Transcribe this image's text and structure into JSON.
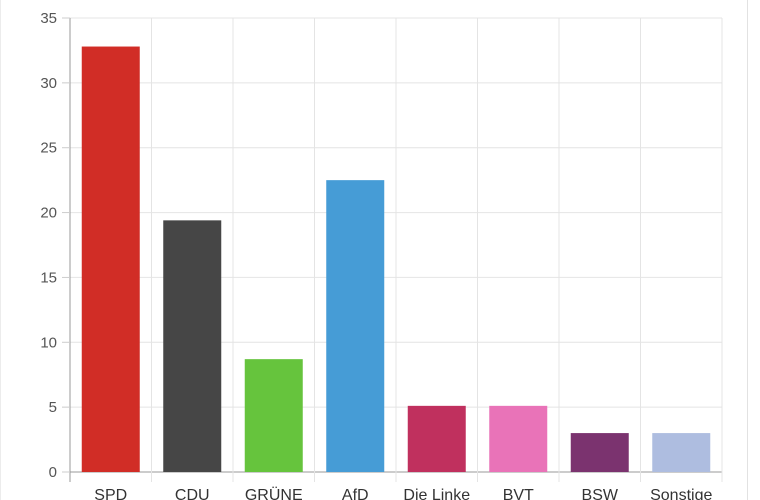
{
  "chart_data": {
    "type": "bar",
    "title": "",
    "xlabel": "",
    "ylabel": "",
    "categories": [
      "SPD",
      "CDU",
      "GRÜNE",
      "AfD",
      "Die Linke",
      "BVT",
      "BSW",
      "Sonstige"
    ],
    "values": [
      32.8,
      19.4,
      8.7,
      22.5,
      5.1,
      5.1,
      3.0,
      3.0
    ],
    "colors": [
      "#d12d26",
      "#464646",
      "#66c43d",
      "#469cd6",
      "#c0305e",
      "#e973b8",
      "#7b336f",
      "#aebde0"
    ],
    "ylim": [
      0,
      35
    ],
    "yticks": [
      "0",
      "5",
      "10",
      "15",
      "20",
      "25",
      "30",
      "35"
    ],
    "grid": true,
    "legend": "none"
  }
}
